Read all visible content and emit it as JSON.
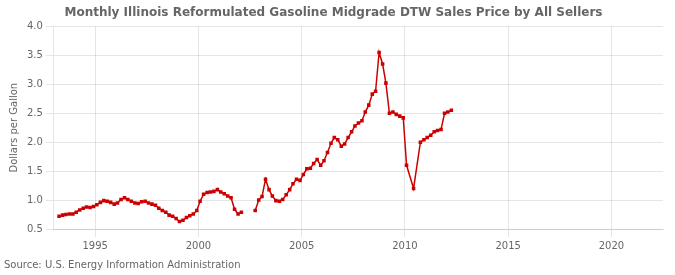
{
  "chart_data": {
    "type": "line",
    "title": "Monthly Illinois Reformulated Gasoline Midgrade DTW Sales Price by All Sellers",
    "ylabel": "Dollars per Gallon",
    "annotations": [
      "Source: U.S. Energy Information Administration"
    ],
    "color": "#CC0000",
    "marker": "square",
    "grid": true,
    "xlim": [
      1993.0,
      2022.5
    ],
    "ylim": [
      0.5,
      4.0
    ],
    "xticks": [
      1995,
      2000,
      2005,
      2010,
      2015,
      2020
    ],
    "yticks": [
      0.5,
      {
        "value": 1.0,
        "label": "1.0"
      },
      1.5,
      {
        "value": 2.0,
        "label": "2.0"
      },
      2.5,
      {
        "value": 3.0,
        "label": "3.0"
      },
      3.5,
      {
        "value": 4.0,
        "label": "4.0"
      }
    ],
    "x": [
      1993.25,
      1993.42,
      1993.58,
      1993.75,
      1993.92,
      1994.08,
      1994.25,
      1994.42,
      1994.58,
      1994.75,
      1994.92,
      1995.08,
      1995.25,
      1995.42,
      1995.58,
      1995.75,
      1995.92,
      1996.08,
      1996.25,
      1996.42,
      1996.58,
      1996.75,
      1996.92,
      1997.08,
      1997.25,
      1997.42,
      1997.58,
      1997.75,
      1997.92,
      1998.08,
      1998.25,
      1998.42,
      1998.58,
      1998.75,
      1998.92,
      1999.08,
      1999.25,
      1999.42,
      1999.58,
      1999.75,
      1999.92,
      2000.08,
      2000.25,
      2000.42,
      2000.58,
      2000.75,
      2000.92,
      2001.08,
      2001.25,
      2001.42,
      2001.58,
      2001.75,
      2001.92,
      2002.08,
      null,
      2002.75,
      2002.92,
      2003.08,
      2003.25,
      2003.42,
      2003.58,
      2003.75,
      2003.92,
      2004.08,
      2004.25,
      2004.42,
      2004.58,
      2004.75,
      2004.92,
      2005.08,
      2005.25,
      2005.42,
      2005.58,
      2005.75,
      2005.92,
      2006.08,
      2006.25,
      2006.42,
      2006.58,
      2006.75,
      2006.92,
      2007.08,
      2007.25,
      2007.42,
      2007.58,
      2007.75,
      2007.92,
      2008.08,
      2008.25,
      2008.42,
      2008.58,
      2008.75,
      2008.92,
      2009.08,
      2009.25,
      2009.42,
      2009.58,
      2009.75,
      2009.92,
      2010.08,
      2010.42,
      2010.75,
      2010.92,
      2011.08,
      2011.25,
      2011.42,
      2011.58,
      2011.75,
      2011.92,
      2012.08,
      2012.25
    ],
    "values": [
      0.72,
      0.74,
      0.75,
      0.76,
      0.76,
      0.79,
      0.83,
      0.86,
      0.88,
      0.87,
      0.89,
      0.92,
      0.96,
      0.99,
      0.98,
      0.96,
      0.93,
      0.95,
      1.01,
      1.04,
      1.01,
      0.98,
      0.95,
      0.94,
      0.97,
      0.98,
      0.95,
      0.93,
      0.91,
      0.86,
      0.82,
      0.79,
      0.74,
      0.72,
      0.68,
      0.63,
      0.65,
      0.7,
      0.73,
      0.76,
      0.82,
      0.98,
      1.1,
      1.13,
      1.14,
      1.15,
      1.18,
      1.14,
      1.11,
      1.07,
      1.04,
      0.84,
      0.76,
      0.79,
      null,
      0.82,
      1.0,
      1.06,
      1.36,
      1.18,
      1.07,
      0.99,
      0.98,
      1.01,
      1.09,
      1.18,
      1.28,
      1.36,
      1.34,
      1.44,
      1.54,
      1.55,
      1.63,
      1.7,
      1.6,
      1.68,
      1.82,
      1.98,
      2.08,
      2.04,
      1.93,
      1.97,
      2.08,
      2.18,
      2.28,
      2.33,
      2.37,
      2.52,
      2.64,
      2.83,
      2.88,
      3.55,
      3.35,
      3.02,
      2.5,
      2.52,
      2.48,
      2.45,
      2.42,
      1.6,
      1.2,
      2.0,
      2.04,
      2.08,
      2.12,
      2.18,
      2.2,
      2.22,
      2.5,
      2.52,
      2.55
    ]
  }
}
